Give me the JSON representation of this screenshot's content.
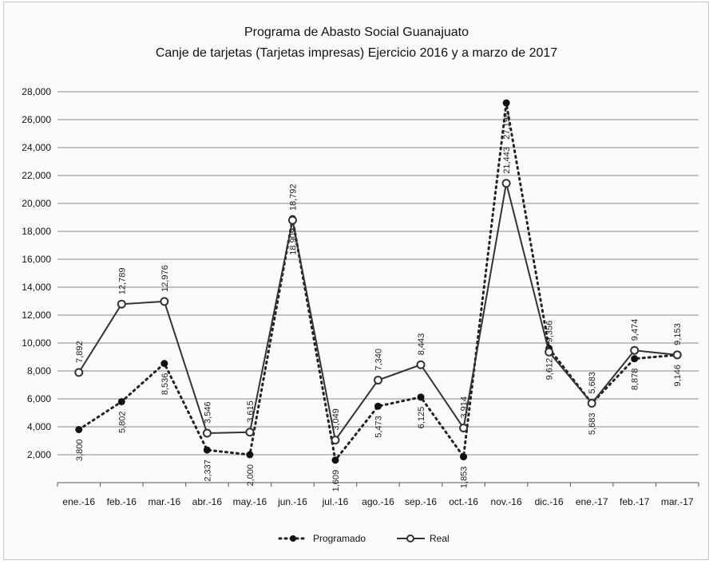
{
  "chart_data": {
    "type": "line",
    "title": "Programa de Abasto Social Guanajuato",
    "subtitle": "Canje de tarjetas (Tarjetas impresas) Ejercicio 2016 y a marzo de 2017",
    "xlabel": "",
    "ylabel": "",
    "ylim": [
      0,
      28000
    ],
    "yticks": [
      2000,
      4000,
      6000,
      8000,
      10000,
      12000,
      14000,
      16000,
      18000,
      20000,
      22000,
      24000,
      26000,
      28000
    ],
    "ytick_labels": [
      "2,000",
      "4,000",
      "6,000",
      "8,000",
      "10,000",
      "12,000",
      "14,000",
      "16,000",
      "18,000",
      "20,000",
      "22,000",
      "24,000",
      "26,000",
      "28,000"
    ],
    "categories": [
      "ene.-16",
      "feb.-16",
      "mar.-16",
      "abr.-16",
      "may.-16",
      "jun.-16",
      "jul.-16",
      "ago.-16",
      "sep.-16",
      "oct.-16",
      "nov.-16",
      "dic.-16",
      "ene.-17",
      "feb.-17",
      "mar.-17"
    ],
    "grid": true,
    "legend_position": "bottom",
    "series": [
      {
        "name": "Programado",
        "style": "dotted",
        "color": "#222222",
        "values": [
          3800,
          5802,
          8536,
          2337,
          2000,
          18909,
          1609,
          5473,
          6125,
          1853,
          27198,
          9612,
          5683,
          8878,
          9146
        ],
        "labels": [
          "3,800",
          "5,802",
          "8,536",
          "2,337",
          "2,000",
          "18,909",
          "1,609",
          "5,473",
          "6,125",
          "1,853",
          "27,198",
          "9,612",
          "5,683",
          "8,878",
          "9,146"
        ]
      },
      {
        "name": "Real",
        "style": "solid",
        "color": "#333333",
        "values": [
          7892,
          12789,
          12976,
          3546,
          3615,
          18792,
          3049,
          7340,
          8443,
          3914,
          21443,
          9356,
          5683,
          9474,
          9153
        ],
        "labels": [
          "7,892",
          "12,789",
          "12,976",
          "3,546",
          "3,615",
          "18,792",
          "3,049",
          "7,340",
          "8,443",
          "3,914",
          "21,443",
          "9,356",
          "5,683",
          "9,474",
          "9,153"
        ]
      }
    ]
  }
}
